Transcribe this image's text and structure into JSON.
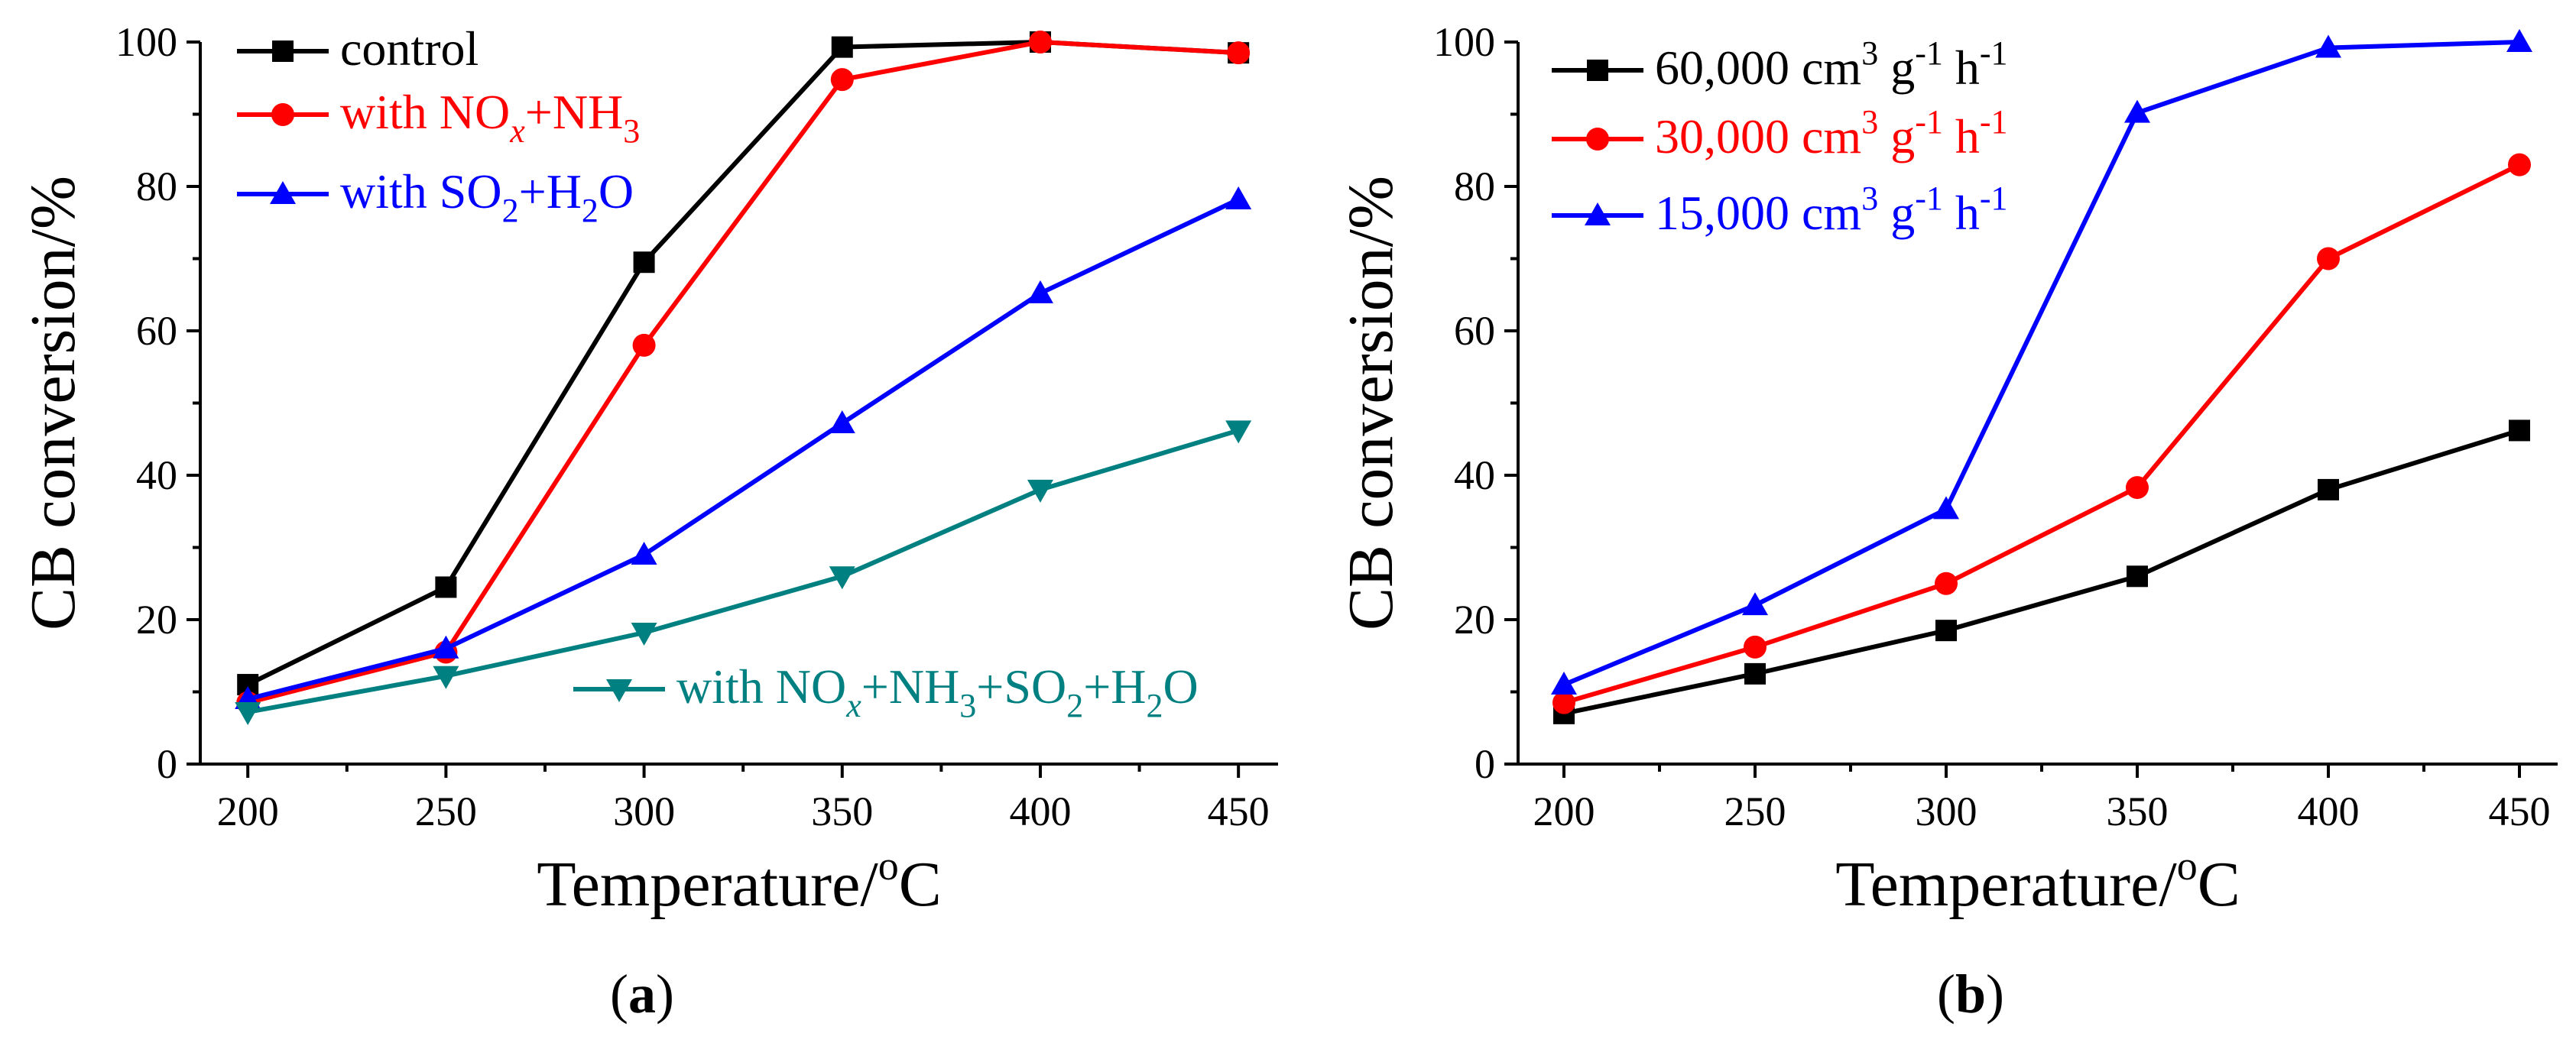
{
  "chart_data": [
    {
      "type": "line",
      "panel_label": "a",
      "xlabel": "Temperature/°C",
      "xlabel_main": "Temperature/",
      "xlabel_sup": "o",
      "xlabel_unit": "C",
      "ylabel": "CB conversion/%",
      "x": [
        200,
        250,
        300,
        350,
        400,
        450
      ],
      "xlim": [
        188,
        460
      ],
      "ylim": [
        0,
        100
      ],
      "xticks": [
        200,
        250,
        300,
        350,
        400,
        450
      ],
      "yticks": [
        0,
        20,
        40,
        60,
        80,
        100
      ],
      "legend_position": "top-left, last entry bottom-right",
      "series": [
        {
          "name": "control",
          "color": "#000000",
          "marker": "square",
          "values": [
            11,
            24.5,
            69.5,
            99.3,
            100,
            98.5
          ],
          "label_parts": [
            {
              "t": "control"
            }
          ]
        },
        {
          "name": "with NOx+NH3",
          "color": "#ff0000",
          "marker": "circle",
          "values": [
            8.5,
            15.5,
            58,
            94.8,
            100,
            98.5
          ],
          "label_parts": [
            {
              "t": "with NO"
            },
            {
              "t": "x",
              "sub": true,
              "italic": true
            },
            {
              "t": "+NH"
            },
            {
              "t": "3",
              "sub": true
            }
          ]
        },
        {
          "name": "with SO2+H2O",
          "color": "#0000ff",
          "marker": "triangle-up",
          "values": [
            9,
            16,
            29,
            47.2,
            65.2,
            78.2
          ],
          "label_parts": [
            {
              "t": "with SO"
            },
            {
              "t": "2",
              "sub": true
            },
            {
              "t": "+H"
            },
            {
              "t": "2",
              "sub": true
            },
            {
              "t": "O"
            }
          ]
        },
        {
          "name": "with NOx+NH3+SO2+H2O",
          "color": "#008080",
          "marker": "triangle-down",
          "values": [
            7.2,
            12.2,
            18.2,
            26,
            38,
            46.2
          ],
          "label_parts": [
            {
              "t": "with NO"
            },
            {
              "t": "x",
              "sub": true,
              "italic": true
            },
            {
              "t": "+NH"
            },
            {
              "t": "3",
              "sub": true
            },
            {
              "t": "+SO"
            },
            {
              "t": "2",
              "sub": true
            },
            {
              "t": "+H"
            },
            {
              "t": "2",
              "sub": true
            },
            {
              "t": "O"
            }
          ]
        }
      ]
    },
    {
      "type": "line",
      "panel_label": "b",
      "xlabel": "Temperature/°C",
      "xlabel_main": "Temperature/",
      "xlabel_sup": "o",
      "xlabel_unit": "C",
      "ylabel": "CB conversion/%",
      "x": [
        200,
        250,
        300,
        350,
        400,
        450
      ],
      "xlim": [
        188,
        460
      ],
      "ylim": [
        0,
        100
      ],
      "xticks": [
        200,
        250,
        300,
        350,
        400,
        450
      ],
      "yticks": [
        0,
        20,
        40,
        60,
        80,
        100
      ],
      "legend_position": "top-left",
      "series": [
        {
          "name": "60,000 cm3 g-1 h-1",
          "color": "#000000",
          "marker": "square",
          "values": [
            7,
            12.5,
            18.5,
            26,
            38,
            46.2
          ],
          "label_parts": [
            {
              "t": "60,000 cm"
            },
            {
              "t": "3",
              "sup": true
            },
            {
              "t": " g"
            },
            {
              "t": "-1",
              "sup": true
            },
            {
              "t": " h"
            },
            {
              "t": "-1",
              "sup": true
            }
          ]
        },
        {
          "name": "30,000 cm3 g-1 h-1",
          "color": "#ff0000",
          "marker": "circle",
          "values": [
            8.5,
            16.2,
            25,
            38.3,
            70,
            83
          ],
          "label_parts": [
            {
              "t": "30,000 cm"
            },
            {
              "t": "3",
              "sup": true
            },
            {
              "t": " g"
            },
            {
              "t": "-1",
              "sup": true
            },
            {
              "t": " h"
            },
            {
              "t": "-1",
              "sup": true
            }
          ]
        },
        {
          "name": "15,000 cm3 g-1 h-1",
          "color": "#0000ff",
          "marker": "triangle-up",
          "values": [
            11,
            22,
            35.3,
            90.2,
            99.2,
            100
          ],
          "label_parts": [
            {
              "t": "15,000 cm"
            },
            {
              "t": "3",
              "sup": true
            },
            {
              "t": " g"
            },
            {
              "t": "-1",
              "sup": true
            },
            {
              "t": " h"
            },
            {
              "t": "-1",
              "sup": true
            }
          ]
        }
      ]
    }
  ]
}
